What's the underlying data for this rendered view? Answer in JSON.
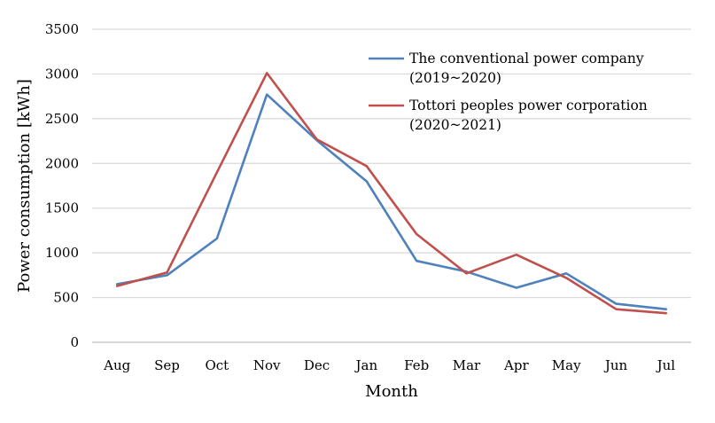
{
  "chart_data": {
    "type": "line",
    "title": "",
    "xlabel": "Month",
    "ylabel": "Power consumption [kWh]",
    "categories": [
      "Aug",
      "Sep",
      "Oct",
      "Nov",
      "Dec",
      "Jan",
      "Feb",
      "Mar",
      "Apr",
      "May",
      "Jun",
      "Jul"
    ],
    "ylim": [
      0,
      3500
    ],
    "yticks": [
      0,
      500,
      1000,
      1500,
      2000,
      2500,
      3000,
      3500
    ],
    "grid": true,
    "legend_position": "top-right",
    "series": [
      {
        "name": "The conventional power company",
        "name_line2": "(2019~2020)",
        "color": "#4f81bd",
        "values": [
          650,
          750,
          1160,
          2770,
          2260,
          1800,
          910,
          790,
          610,
          770,
          430,
          370
        ]
      },
      {
        "name": "Tottori peoples power corporation",
        "name_line2": "(2020~2021)",
        "color": "#c0504d",
        "values": [
          630,
          780,
          1900,
          3010,
          2270,
          1970,
          1210,
          770,
          980,
          720,
          370,
          325
        ]
      }
    ]
  }
}
